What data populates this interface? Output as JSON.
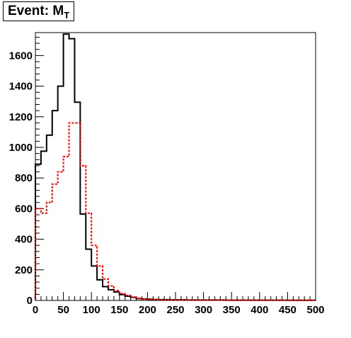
{
  "title": {
    "text": "Event: M",
    "subscript": "T"
  },
  "chart_data": {
    "type": "histogram",
    "title": "Event: M_T",
    "xlabel": "",
    "ylabel": "",
    "xlim": [
      0,
      500
    ],
    "ylim": [
      0,
      1750
    ],
    "grid": false,
    "bin_width": 10,
    "xticks": [
      "0",
      "50",
      "100",
      "150",
      "200",
      "250",
      "300",
      "350",
      "400",
      "450",
      "500"
    ],
    "yticks": [
      "0",
      "200",
      "400",
      "600",
      "800",
      "1000",
      "1200",
      "1400",
      "1600"
    ],
    "series": [
      {
        "color": "#000000",
        "style": "solid",
        "values": [
          890,
          975,
          1080,
          1240,
          1400,
          1740,
          1710,
          1295,
          565,
          335,
          225,
          135,
          90,
          70,
          55,
          38,
          28,
          20,
          12,
          10,
          8,
          6,
          5,
          5,
          4,
          4,
          4,
          3,
          3,
          3,
          3,
          3,
          3,
          3,
          2,
          2,
          2,
          2,
          2,
          2,
          2,
          2,
          2,
          2,
          2,
          1,
          1,
          1,
          1,
          1
        ]
      },
      {
        "color": "#ff0000",
        "style": "dotted",
        "values": [
          600,
          570,
          640,
          760,
          840,
          940,
          1160,
          1160,
          880,
          570,
          360,
          225,
          140,
          95,
          65,
          45,
          33,
          22,
          14,
          10,
          7,
          5,
          4,
          4,
          3,
          3,
          3,
          2,
          2,
          2,
          2,
          2,
          2,
          2,
          2,
          1,
          1,
          1,
          1,
          1,
          1,
          1,
          1,
          1,
          1,
          1,
          1,
          1,
          1,
          1
        ]
      }
    ]
  }
}
